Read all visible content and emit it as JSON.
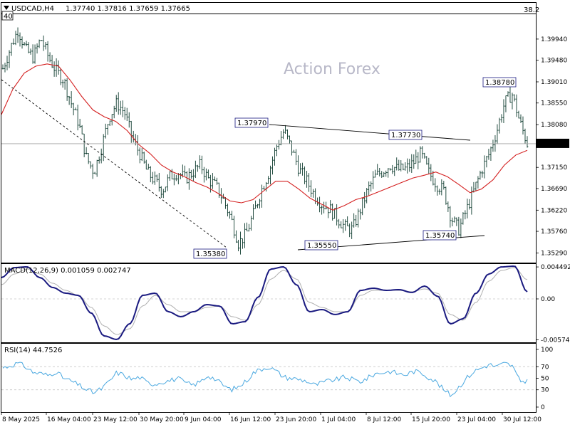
{
  "header": {
    "symbol": "USDCAD,H4",
    "ohlc": "1.37740 1.37816 1.37659 1.37665",
    "corner_value": "38.2",
    "corner_left": "40"
  },
  "watermark": "Action Forex",
  "colors": {
    "price": "#0d3b2e",
    "ma": "#d42020",
    "macd": "#1a1a80",
    "signal": "#b0b0b0",
    "rsi": "#4aa8e0",
    "grid": "#c8c8c8"
  },
  "chart_data": [
    {
      "type": "bar",
      "panel": "price",
      "x_labels": [
        "8 May 2025",
        "16 May 04:00",
        "23 May 12:00",
        "30 May 20:00",
        "9 Jun 04:00",
        "16 Jun 12:00",
        "23 Jun 20:00",
        "1 Jul 04:00",
        "8 Jul 12:00",
        "15 Jul 20:00",
        "23 Jul 04:00",
        "30 Jul 12:00"
      ],
      "y_ticks": [
        "1.39940",
        "1.39480",
        "1.39010",
        "1.38550",
        "1.38080",
        "1.37150",
        "1.36690",
        "1.36220",
        "1.35760",
        "1.35290"
      ],
      "ylim": [
        1.3508,
        1.4048
      ],
      "current_price": "1.37665",
      "current_value": 1.37665,
      "price_path": [
        1.393,
        1.3975,
        1.4015,
        1.397,
        1.3955,
        1.3995,
        1.3955,
        1.3925,
        1.3905,
        1.3855,
        1.381,
        1.3735,
        1.3705,
        1.376,
        1.3825,
        1.3855,
        1.3835,
        1.378,
        1.3745,
        1.3705,
        1.3685,
        1.3665,
        1.3695,
        1.3705,
        1.369,
        1.3705,
        1.372,
        1.369,
        1.3675,
        1.3645,
        1.3605,
        1.355,
        1.357,
        1.3615,
        1.3665,
        1.3705,
        1.376,
        1.3795,
        1.3755,
        1.371,
        1.3685,
        1.3655,
        1.3635,
        1.3625,
        1.3605,
        1.3585,
        1.358,
        1.3622,
        1.3665,
        1.3695,
        1.3708,
        1.372,
        1.371,
        1.3712,
        1.3725,
        1.3745,
        1.3705,
        1.368,
        1.3665,
        1.3605,
        1.358,
        1.3622,
        1.3665,
        1.371,
        1.3745,
        1.3795,
        1.3855,
        1.3875,
        1.3815,
        1.3767
      ],
      "ma_path": [
        1.383,
        1.3885,
        1.392,
        1.3935,
        1.394,
        1.3935,
        1.3905,
        1.387,
        1.384,
        1.3825,
        1.3815,
        1.3795,
        1.3765,
        1.3745,
        1.372,
        1.3705,
        1.3695,
        1.3682,
        1.3672,
        1.3658,
        1.3642,
        1.3638,
        1.3645,
        1.3665,
        1.3685,
        1.3685,
        1.3668,
        1.3648,
        1.3635,
        1.3622,
        1.3632,
        1.3645,
        1.3652,
        1.3662,
        1.3672,
        1.3682,
        1.3692,
        1.3698,
        1.3705,
        1.3695,
        1.3678,
        1.366,
        1.3668,
        1.3688,
        1.372,
        1.3742,
        1.3752
      ],
      "labels": [
        {
          "text": "1.35380",
          "value": 1.3538
        },
        {
          "text": "1.37970",
          "value": 1.3797
        },
        {
          "text": "1.35550",
          "value": 1.3555
        },
        {
          "text": "1.37730",
          "value": 1.3773
        },
        {
          "text": "1.35740",
          "value": 1.3574
        },
        {
          "text": "1.38780",
          "value": 1.3878
        }
      ],
      "annotation": "Action Forex"
    },
    {
      "type": "line",
      "panel": "macd",
      "title": "MACD(12,26,9) 0.001059 0.002747",
      "y_ticks": [
        "0.004492",
        "0.00",
        "-0.005748"
      ],
      "ylim": [
        -0.0061,
        0.0048
      ],
      "series": [
        {
          "values": [
            0.003,
            0.0044,
            0.0045,
            0.003,
            0.0016,
            0.0008,
            0.0005,
            -0.002,
            -0.0052,
            -0.0057,
            -0.0035,
            0.0005,
            0.0008,
            -0.0018,
            -0.0025,
            -0.0018,
            -0.0008,
            -0.001,
            -0.0035,
            -0.0032,
            0.0002,
            0.0042,
            0.0045,
            0.002,
            -0.0018,
            -0.0015,
            -0.0022,
            -0.0018,
            0.0012,
            0.0015,
            0.0012,
            0.0013,
            0.0009,
            0.0018,
            0.0004,
            -0.0035,
            -0.0028,
            0.0008,
            0.0035,
            0.0045,
            0.0046,
            0.001
          ]
        },
        {
          "values": [
            0.002,
            0.0035,
            0.0042,
            0.0035,
            0.0022,
            0.0012,
            0.0005,
            -0.0012,
            -0.0038,
            -0.005,
            -0.0042,
            -0.001,
            0.0005,
            -0.0008,
            -0.0018,
            -0.0018,
            -0.0012,
            -0.001,
            -0.0025,
            -0.003,
            -0.0008,
            0.0028,
            0.004,
            0.0028,
            -0.0005,
            -0.0012,
            -0.0018,
            -0.0018,
            0.0005,
            0.0012,
            0.0012,
            0.0012,
            0.001,
            0.0014,
            0.0008,
            -0.0022,
            -0.003,
            -0.0005,
            0.0025,
            0.004,
            0.0044,
            0.0027
          ]
        }
      ]
    },
    {
      "type": "line",
      "panel": "rsi",
      "title": "RSI(14) 44.7526",
      "y_ticks": [
        "100",
        "70",
        "50",
        "30",
        "0"
      ],
      "ylim": [
        0,
        100
      ],
      "values": [
        68,
        72,
        76,
        70,
        60,
        58,
        55,
        62,
        50,
        45,
        38,
        30,
        25,
        32,
        44,
        60,
        55,
        48,
        52,
        42,
        40,
        44,
        46,
        50,
        42,
        38,
        44,
        55,
        48,
        38,
        30,
        35,
        45,
        60,
        66,
        70,
        62,
        52,
        50,
        48,
        45,
        38,
        42,
        46,
        48,
        52,
        48,
        44,
        50,
        58,
        60,
        62,
        58,
        56,
        62,
        60,
        52,
        44,
        30,
        20,
        35,
        50,
        62,
        68,
        74,
        70,
        76,
        72,
        45,
        44.75
      ]
    }
  ]
}
